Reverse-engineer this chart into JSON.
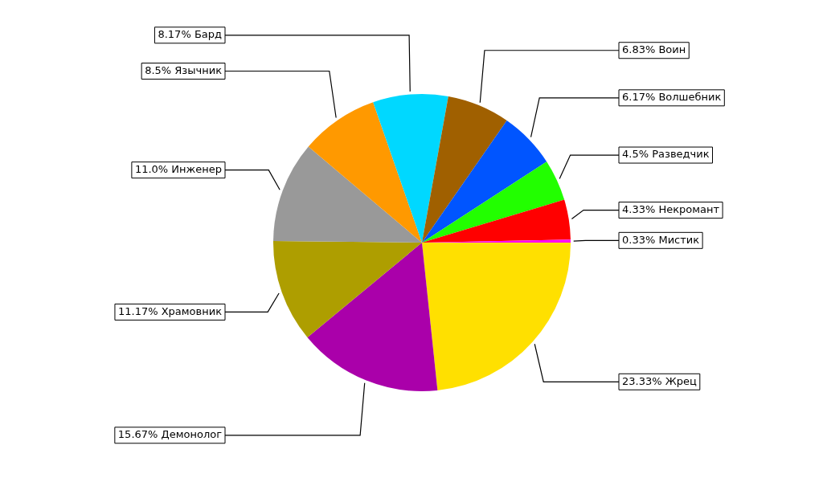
{
  "chart_data": {
    "type": "pie",
    "categories": [
      "Мистик",
      "Некромант",
      "Разведчик",
      "Волшебник",
      "Воин",
      "Бард",
      "Язычник",
      "Инженер",
      "Храмовник",
      "Демонолог",
      "Жрец"
    ],
    "values": [
      0.33,
      4.33,
      4.5,
      6.17,
      6.83,
      8.17,
      8.5,
      11.0,
      11.17,
      15.67,
      23.33
    ],
    "value_labels": [
      "0.33%",
      "4.33%",
      "4.5%",
      "6.17%",
      "6.83%",
      "8.17%",
      "8.5%",
      "11.0%",
      "11.17%",
      "15.67%",
      "23.33%"
    ],
    "colors": [
      "#ff00ff",
      "#ff0000",
      "#22ff00",
      "#0055ff",
      "#a06000",
      "#00d8ff",
      "#ff9900",
      "#999999",
      "#ae9e00",
      "#aa00aa",
      "#ffe000"
    ]
  }
}
